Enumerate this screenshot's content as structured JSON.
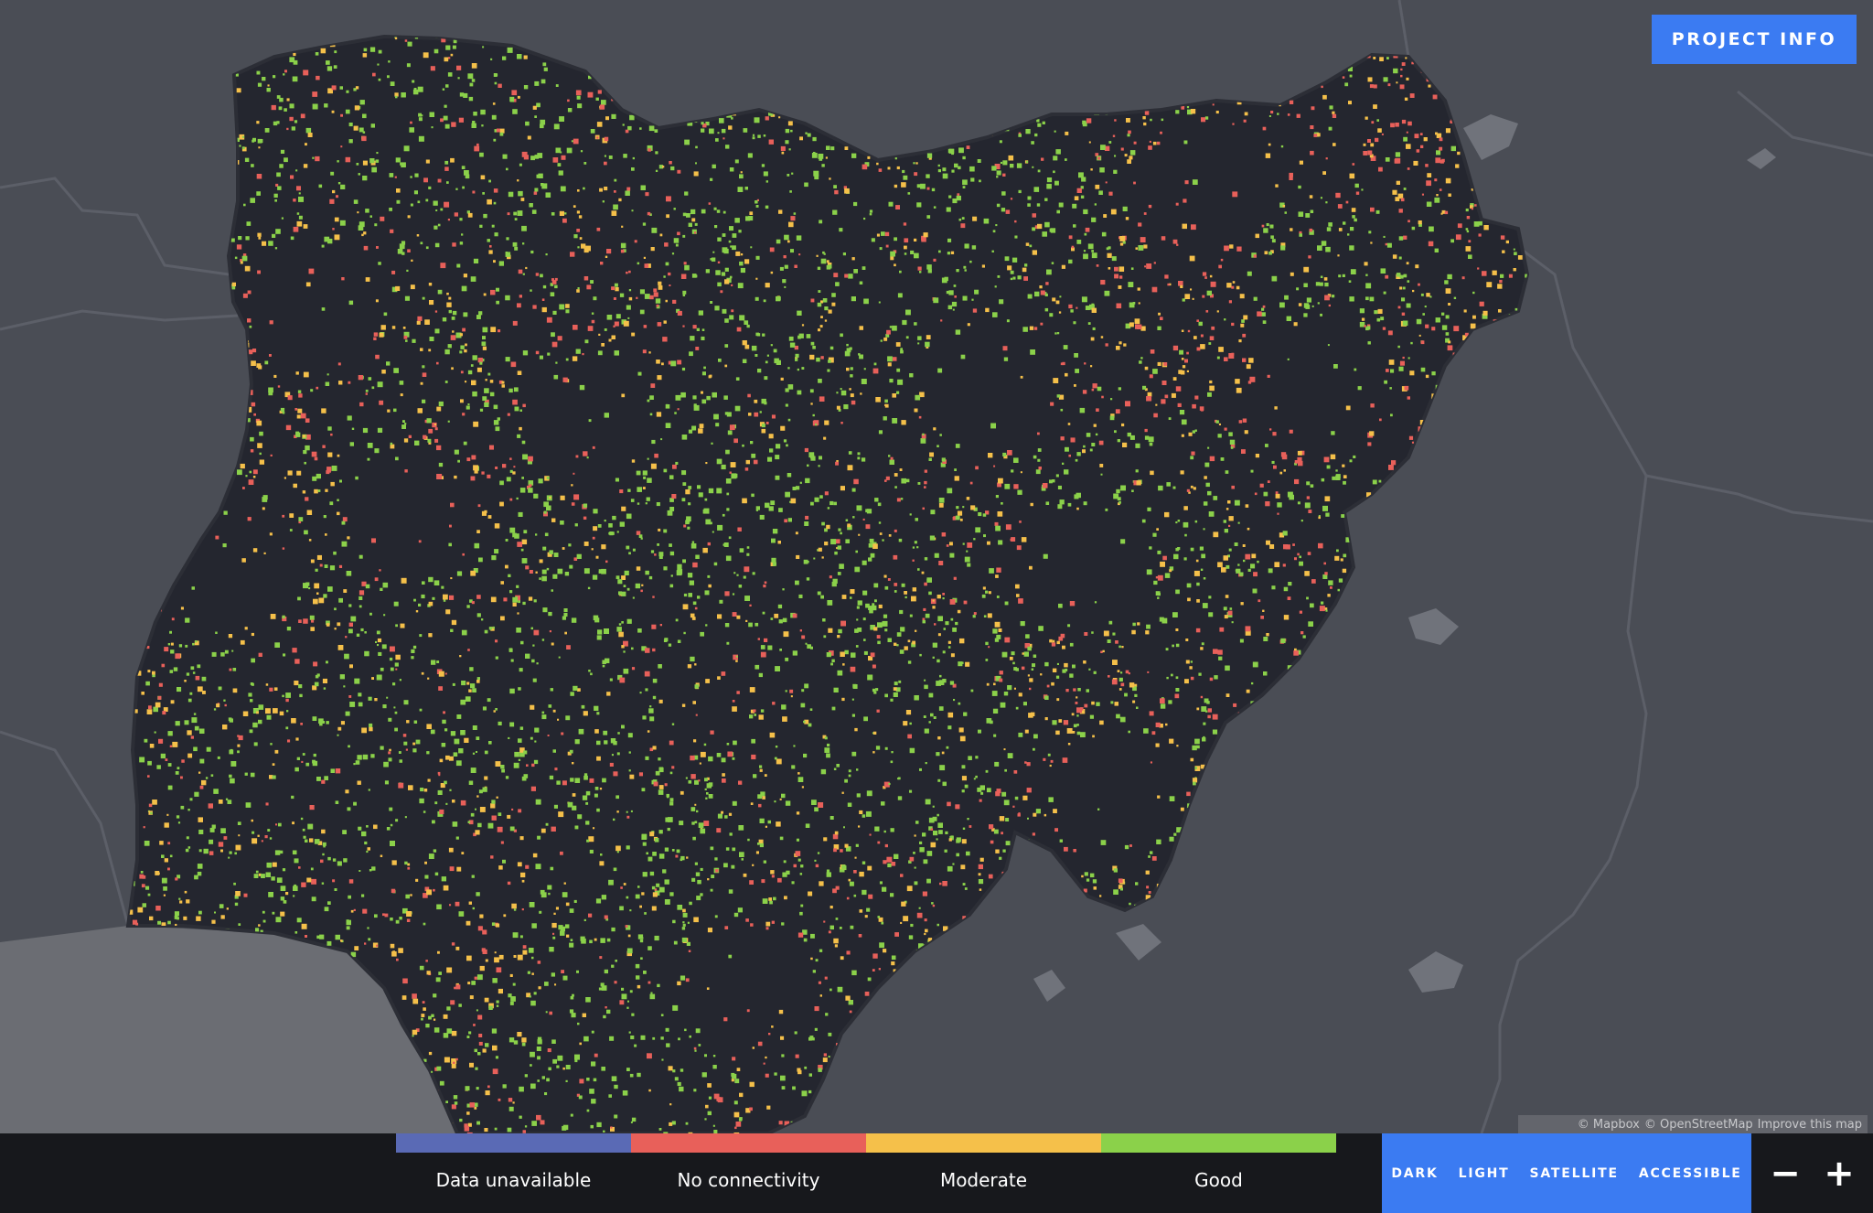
{
  "header": {
    "project_info_label": "PROJECT INFO"
  },
  "map": {
    "attribution": [
      "© Mapbox",
      "© OpenStreetMap",
      "Improve this map"
    ],
    "colors": {
      "background": "#4a4d55",
      "ocean": "#6b6d73",
      "country_fill": "#24262f",
      "borders": "#5c5f68"
    }
  },
  "legend": {
    "items": [
      {
        "label": "Data unavailable",
        "color": "#5a6ab5"
      },
      {
        "label": "No connectivity",
        "color": "#e8605a"
      },
      {
        "label": "Moderate",
        "color": "#f5c04a"
      },
      {
        "label": "Good",
        "color": "#8bd14a"
      }
    ]
  },
  "style_switcher": {
    "options": [
      "DARK",
      "LIGHT",
      "SATELLITE",
      "ACCESSIBLE"
    ],
    "selected": "DARK"
  },
  "zoom": {
    "out_label": "−",
    "in_label": "+"
  }
}
